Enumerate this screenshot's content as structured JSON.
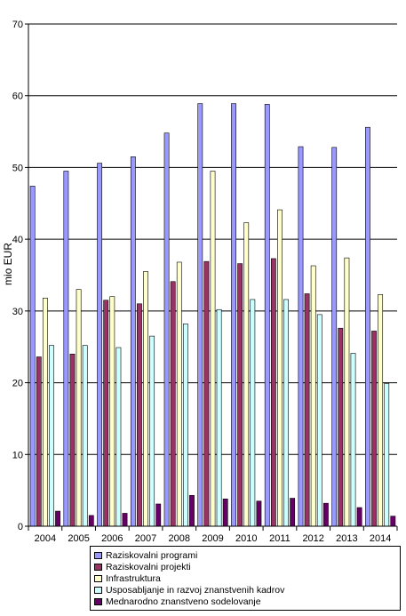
{
  "chart_data": {
    "type": "bar",
    "ylabel": "mio EUR",
    "ylim": [
      0,
      70
    ],
    "yticks": [
      0,
      10,
      20,
      30,
      40,
      50,
      60,
      70
    ],
    "categories": [
      "2004",
      "2005",
      "2006",
      "2007",
      "2008",
      "2009",
      "2010",
      "2011",
      "2012",
      "2013",
      "2014"
    ],
    "legend_position": "bottom",
    "series": [
      {
        "name": "Raziskovalni programi",
        "color": "#9999ff",
        "values": [
          47.4,
          49.5,
          50.6,
          51.5,
          54.8,
          58.9,
          58.9,
          58.8,
          52.9,
          52.8,
          55.6
        ]
      },
      {
        "name": "Raziskovalni projekti",
        "color": "#993366",
        "values": [
          23.6,
          24.0,
          31.5,
          31.0,
          34.1,
          36.9,
          36.6,
          37.3,
          32.4,
          27.6,
          27.2
        ]
      },
      {
        "name": "Infrastruktura",
        "color": "#ffffcc",
        "values": [
          31.8,
          33.0,
          32.0,
          35.5,
          36.8,
          49.5,
          42.3,
          44.1,
          36.3,
          37.4,
          32.3
        ]
      },
      {
        "name": "Usposabljanje in razvoj znanstvenih kadrov",
        "color": "#ccffff",
        "values": [
          25.2,
          25.2,
          24.9,
          26.5,
          28.2,
          30.2,
          31.6,
          31.6,
          29.5,
          24.1,
          19.9
        ]
      },
      {
        "name": "Mednarodno znanstveno sodelovanje",
        "color": "#660066",
        "values": [
          2.1,
          1.5,
          1.8,
          3.1,
          4.3,
          3.8,
          3.5,
          3.9,
          3.2,
          2.6,
          1.4
        ]
      }
    ]
  }
}
